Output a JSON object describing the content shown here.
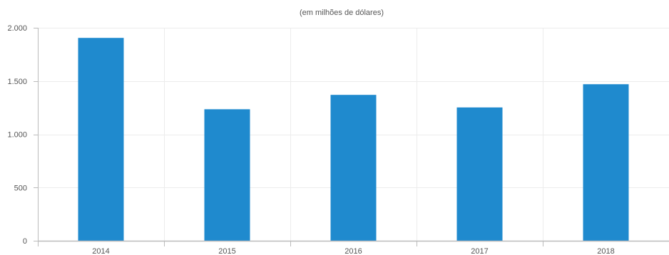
{
  "chart_data": {
    "type": "bar",
    "subtitle": "(em milhões de dólares)",
    "categories": [
      "2014",
      "2015",
      "2016",
      "2017",
      "2018"
    ],
    "values": [
      1905,
      1235,
      1370,
      1252,
      1470
    ],
    "ylim": [
      0,
      2000
    ],
    "y_ticks": [
      0,
      500,
      1000,
      1500,
      2000
    ],
    "y_tick_labels": [
      "0",
      "500",
      "1.000",
      "1.500",
      "2.000"
    ],
    "grid": true,
    "legend": "none",
    "colors": {
      "bar": "#1f8ace",
      "grid": "#ececec",
      "axis": "#bbbbbb",
      "text": "#555555"
    }
  }
}
